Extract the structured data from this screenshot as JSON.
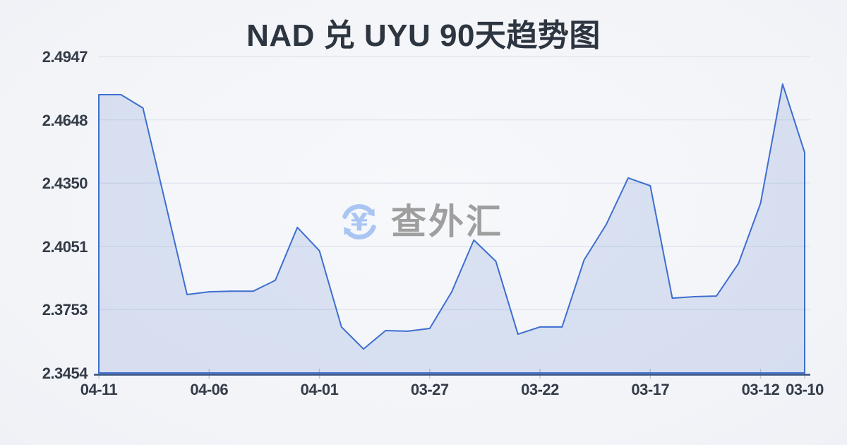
{
  "title": "NAD 兑 UYU 90天趋势图",
  "watermark": {
    "text": "查外汇",
    "symbol": "¥"
  },
  "colors": {
    "line": "#3e6ecf",
    "fill": "rgba(66,110,200,0.16)",
    "grid": "#e2e6ee",
    "axis": "#37517c",
    "tick": "#c2c9d6",
    "title_text": "#2d3540",
    "label_text": "#333b47",
    "watermark_text": "#9b9b9b",
    "watermark_icon": "#a5c4f2"
  },
  "chart_data": {
    "type": "area",
    "title": "NAD 兑 UYU 90天趋势图",
    "x": [
      "04-11",
      "04-10",
      "04-09",
      "04-08",
      "04-07",
      "04-06",
      "04-05",
      "04-04",
      "04-03",
      "04-02",
      "04-01",
      "03-31",
      "03-30",
      "03-29",
      "03-28",
      "03-27",
      "03-26",
      "03-25",
      "03-24",
      "03-23",
      "03-22",
      "03-21",
      "03-20",
      "03-19",
      "03-18",
      "03-17",
      "03-16",
      "03-15",
      "03-14",
      "03-13",
      "03-12",
      "03-11",
      "03-10"
    ],
    "values": [
      2.4767,
      2.4767,
      2.4704,
      2.4264,
      2.3824,
      2.3837,
      2.384,
      2.384,
      2.3891,
      2.4141,
      2.4031,
      2.3671,
      2.3567,
      2.3654,
      2.3651,
      2.3664,
      2.3837,
      2.4081,
      2.3981,
      2.3637,
      2.3671,
      2.3671,
      2.3987,
      2.4154,
      2.4374,
      2.4337,
      2.3807,
      2.3814,
      2.3817,
      2.3971,
      2.4254,
      2.4817,
      2.4494
    ],
    "y_ticks": [
      "2.4947",
      "2.4648",
      "2.4350",
      "2.4051",
      "2.3753",
      "2.3454"
    ],
    "x_tick_labels": [
      "04-11",
      "04-06",
      "04-01",
      "03-27",
      "03-22",
      "03-17",
      "03-12",
      "03-10"
    ],
    "x_tick_indices": [
      0,
      5,
      10,
      15,
      20,
      25,
      30,
      32
    ],
    "ylim": [
      2.3454,
      2.4947
    ],
    "xlabel": "",
    "ylabel": "",
    "grid": "horizontal",
    "legend": "none"
  }
}
